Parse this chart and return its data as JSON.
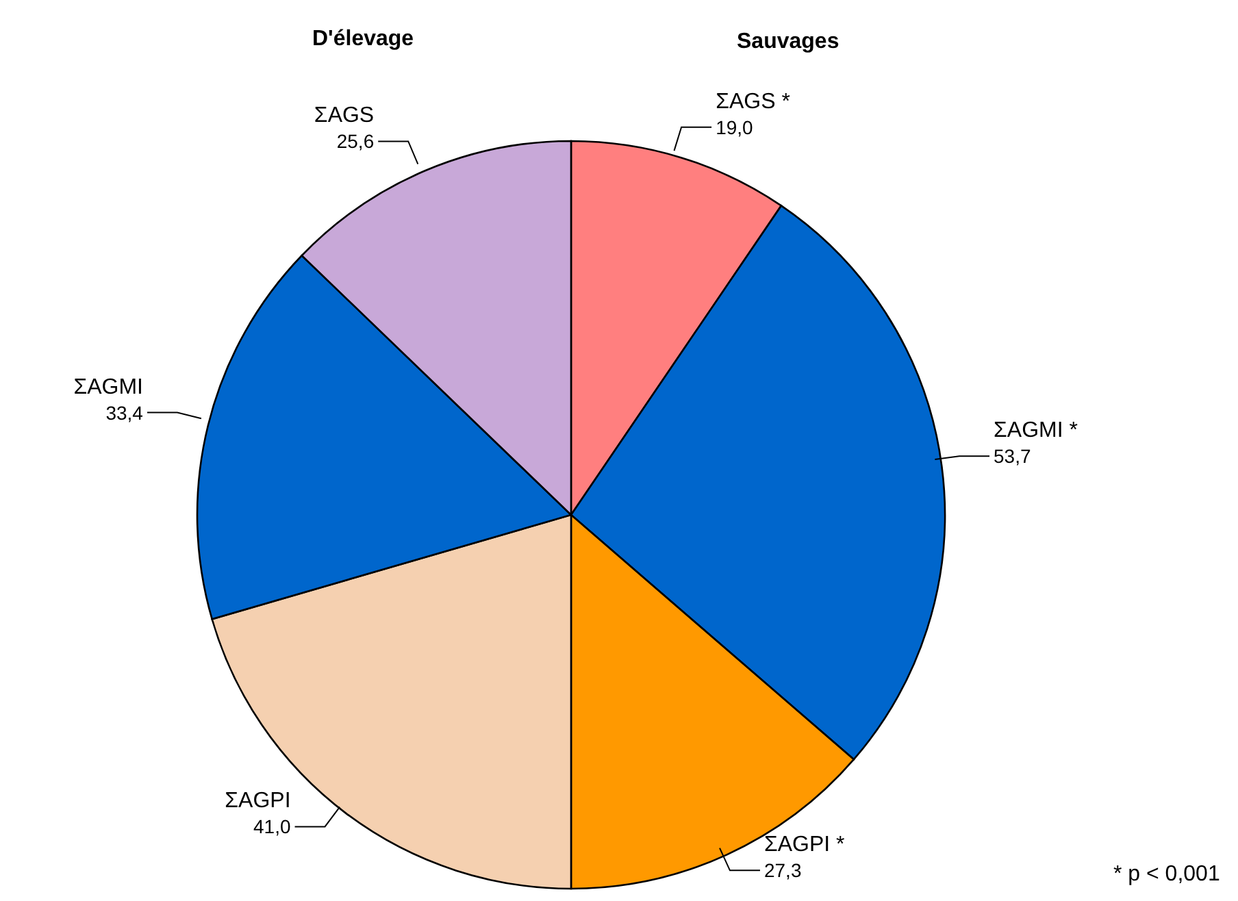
{
  "chart_data": {
    "type": "pie",
    "categories": [
      "ΣAGS *",
      "ΣAGMI *",
      "ΣAGPI *",
      "ΣAGPI",
      "ΣAGMI",
      "ΣAGS"
    ],
    "values": [
      19.0,
      53.7,
      27.3,
      41.0,
      33.4,
      25.6
    ],
    "value_labels": [
      "19,0",
      "53,7",
      "27,3",
      "41,0",
      "33,4",
      "25,6"
    ],
    "colors": [
      "#ff7f7f",
      "#0066cc",
      "#ff9900",
      "#f5d0b0",
      "#0066cc",
      "#c8a8d8"
    ],
    "annotations": [
      "D'élevage",
      "Sauvages",
      "* p < 0,001"
    ],
    "legend": false
  }
}
